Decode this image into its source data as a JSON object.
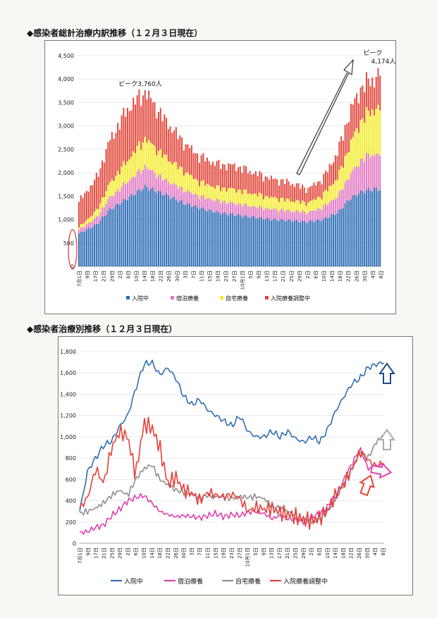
{
  "charts": [
    {
      "title": "◆感染者総計治療内訳推移（１２月３日現在）",
      "legend": [
        {
          "label": "入院中",
          "color": "#2e6db4"
        },
        {
          "label": "宿泊療養",
          "color": "#e27ac4"
        },
        {
          "label": "自宅療養",
          "color": "#f2ec2e"
        },
        {
          "label": "入院療養調整中",
          "color": "#e2483d"
        }
      ],
      "annotations": {
        "peak1": "ピーク3,760人",
        "peak2a": "ピーク",
        "peak2b": "4,174人"
      },
      "yticks": [
        "0",
        "500",
        "1,000",
        "1,500",
        "2,000",
        "2,500",
        "3,000",
        "3,500",
        "4,000",
        "4,500"
      ],
      "xticks": [
        "7月1日",
        "9日",
        "17日",
        "21日",
        "29日",
        "2日",
        "6日",
        "10日",
        "14日",
        "18日",
        "22日",
        "26日",
        "30日",
        "3日",
        "7日",
        "11日",
        "15日",
        "19日",
        "23日",
        "27日",
        "10月1日",
        "5日",
        "9日",
        "13日",
        "17日",
        "21日",
        "25日",
        "29日",
        "2日",
        "6日",
        "10日",
        "14日",
        "18日",
        "22日",
        "26日",
        "30日",
        "4日",
        "8日"
      ]
    },
    {
      "title": "◆感染者治療別推移（１２月３日現在）",
      "legend": [
        {
          "label": "入院中",
          "color": "#2e6db4"
        },
        {
          "label": "宿泊療養",
          "color": "#e040b0"
        },
        {
          "label": "自宅療養",
          "color": "#909090"
        },
        {
          "label": "入院療養調整中",
          "color": "#e8403a"
        }
      ],
      "yticks": [
        "0",
        "200",
        "400",
        "600",
        "800",
        "1,000",
        "1,200",
        "1,400",
        "1,600",
        "1,800"
      ],
      "xticks": [
        "7月1日",
        "9日",
        "17日",
        "21日",
        "25日",
        "29日",
        "2日",
        "6日",
        "10日",
        "14日",
        "18日",
        "22日",
        "26日",
        "30日",
        "3日",
        "7日",
        "11日",
        "15日",
        "19日",
        "23日",
        "27日",
        "10月1日",
        "5日",
        "9日",
        "13日",
        "17日",
        "21日",
        "25日",
        "29日",
        "2日",
        "6日",
        "10日",
        "14日",
        "18日",
        "22日",
        "26日",
        "30日",
        "4日",
        "8日"
      ]
    }
  ],
  "chart_data": [
    {
      "type": "bar",
      "stacked": true,
      "title": "◆感染者総計治療内訳推移（１２月３日現在）",
      "ylim": [
        0,
        4500
      ],
      "keypoints_x_fraction": [
        0,
        0.06,
        0.1,
        0.16,
        0.22,
        0.28,
        0.35,
        0.4,
        0.46,
        0.52,
        0.58,
        0.64,
        0.7,
        0.76,
        0.81,
        0.86,
        0.9,
        0.94,
        0.98,
        1
      ],
      "series": [
        {
          "name": "入院中",
          "values": [
            700,
            900,
            1200,
            1450,
            1700,
            1550,
            1350,
            1250,
            1150,
            1100,
            1050,
            1000,
            980,
            950,
            1000,
            1150,
            1450,
            1600,
            1650,
            1650
          ]
        },
        {
          "name": "宿泊療養",
          "values": [
            80,
            150,
            250,
            350,
            430,
            320,
            280,
            250,
            250,
            240,
            230,
            220,
            210,
            200,
            260,
            350,
            500,
            700,
            750,
            750
          ]
        },
        {
          "name": "自宅療養",
          "values": [
            50,
            150,
            300,
            450,
            600,
            500,
            400,
            300,
            280,
            300,
            270,
            250,
            220,
            200,
            260,
            400,
            650,
            850,
            950,
            1000
          ]
        },
        {
          "name": "入院療養調整中",
          "values": [
            550,
            700,
            900,
            1100,
            1000,
            800,
            600,
            550,
            500,
            500,
            450,
            400,
            380,
            300,
            350,
            550,
            700,
            700,
            650,
            770
          ]
        }
      ],
      "peaks": [
        {
          "label": "ピーク3,760人",
          "value": 3760
        },
        {
          "label": "ピーク 4,174人",
          "value": 4174
        }
      ]
    },
    {
      "type": "line",
      "title": "◆感染者治療別推移（１２月３日現在）",
      "ylim": [
        0,
        1800
      ],
      "series": [
        {
          "name": "入院中",
          "values": [
            300,
            680,
            800,
            920,
            960,
            1100,
            1200,
            1450,
            1680,
            1700,
            1580,
            1650,
            1550,
            1380,
            1300,
            1350,
            1250,
            1200,
            1150,
            1100,
            1200,
            1050,
            1000,
            1000,
            1050,
            1000,
            1050,
            980,
            950,
            1000,
            950,
            1080,
            1250,
            1380,
            1500,
            1550,
            1650,
            1680,
            1700
          ]
        },
        {
          "name": "宿泊療養",
          "values": [
            100,
            110,
            150,
            170,
            260,
            320,
            400,
            430,
            450,
            380,
            300,
            270,
            250,
            260,
            250,
            240,
            260,
            280,
            250,
            270,
            260,
            290,
            300,
            280,
            230,
            260,
            230,
            220,
            200,
            250,
            280,
            350,
            450,
            600,
            750,
            890,
            700,
            720,
            750
          ]
        },
        {
          "name": "自宅療養",
          "values": [
            280,
            300,
            330,
            380,
            450,
            500,
            450,
            600,
            700,
            740,
            600,
            550,
            500,
            480,
            460,
            430,
            450,
            440,
            430,
            420,
            440,
            430,
            440,
            420,
            350,
            330,
            300,
            260,
            220,
            200,
            230,
            300,
            420,
            560,
            700,
            860,
            800,
            950,
            1020
          ]
        },
        {
          "name": "入院療養調整中",
          "values": [
            330,
            430,
            700,
            560,
            900,
            1050,
            1000,
            640,
            1120,
            1090,
            900,
            560,
            620,
            500,
            470,
            400,
            480,
            450,
            440,
            460,
            420,
            300,
            340,
            320,
            330,
            290,
            270,
            250,
            220,
            210,
            240,
            320,
            460,
            560,
            700,
            860,
            780,
            720,
            760
          ]
        }
      ]
    }
  ]
}
